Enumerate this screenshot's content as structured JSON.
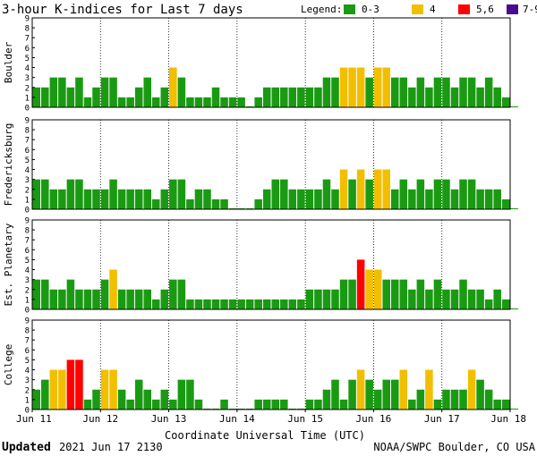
{
  "chart_data": {
    "type": "bar",
    "title": "3-hour K-indices for Last 7 days",
    "legend": {
      "label": "Legend:",
      "placement": "top-right",
      "items": [
        {
          "label": "0-3",
          "color": "#1a9a12"
        },
        {
          "label": "4",
          "color": "#f2bf00"
        },
        {
          "label": "5,6",
          "color": "#ff0000"
        },
        {
          "label": "7-9",
          "color": "#4a0a90"
        }
      ]
    },
    "xlabel": "Coordinate Universal Time (UTC)",
    "x_ticks": [
      "Jun 11",
      "Jun 12",
      "Jun 13",
      "Jun 14",
      "Jun 15",
      "Jun 16",
      "Jun 17",
      "Jun 18"
    ],
    "ylim": [
      0,
      9
    ],
    "y_ticks": [
      0,
      1,
      2,
      3,
      4,
      5,
      6,
      7,
      8,
      9
    ],
    "bars_per_day": 8,
    "panels": [
      {
        "name": "Boulder",
        "values": [
          2,
          2,
          3,
          3,
          2,
          3,
          1,
          2,
          3,
          3,
          1,
          1,
          2,
          3,
          1,
          2,
          4,
          3,
          1,
          1,
          1,
          2,
          1,
          1,
          1,
          0,
          1,
          2,
          2,
          2,
          2,
          2,
          2,
          2,
          3,
          3,
          4,
          4,
          4,
          3,
          4,
          4,
          3,
          3,
          2,
          3,
          2,
          3,
          3,
          2,
          3,
          3,
          2,
          3,
          2,
          1,
          0
        ]
      },
      {
        "name": "Fredericksburg",
        "values": [
          3,
          3,
          2,
          2,
          3,
          3,
          2,
          2,
          2,
          3,
          2,
          2,
          2,
          2,
          1,
          2,
          3,
          3,
          1,
          2,
          2,
          1,
          1,
          0,
          0,
          0,
          1,
          2,
          3,
          3,
          2,
          2,
          2,
          2,
          3,
          2,
          4,
          3,
          4,
          3,
          4,
          4,
          2,
          3,
          2,
          3,
          2,
          3,
          3,
          2,
          3,
          3,
          2,
          2,
          2,
          1,
          0
        ]
      },
      {
        "name": "Est. Planetary",
        "values": [
          3,
          3,
          2,
          2,
          3,
          2,
          2,
          2,
          3,
          4,
          2,
          2,
          2,
          2,
          1,
          2,
          3,
          3,
          1,
          1,
          1,
          1,
          1,
          1,
          1,
          1,
          1,
          1,
          1,
          1,
          1,
          1,
          2,
          2,
          2,
          2,
          3,
          3,
          5,
          4,
          4,
          3,
          3,
          3,
          2,
          3,
          2,
          3,
          2,
          2,
          3,
          2,
          2,
          1,
          2,
          1,
          0
        ]
      },
      {
        "name": "College",
        "values": [
          2,
          3,
          4,
          4,
          5,
          5,
          1,
          2,
          4,
          4,
          2,
          1,
          3,
          2,
          1,
          2,
          1,
          3,
          3,
          1,
          0,
          0,
          1,
          0,
          0,
          0,
          1,
          1,
          1,
          1,
          0,
          0,
          1,
          1,
          2,
          3,
          1,
          3,
          4,
          3,
          2,
          3,
          3,
          4,
          1,
          2,
          4,
          1,
          2,
          2,
          2,
          4,
          3,
          2,
          1,
          1,
          0
        ]
      }
    ]
  },
  "footer": {
    "updated_label": "Updated",
    "updated_value": "2021 Jun 17 2130",
    "credit": "NOAA/SWPC Boulder, CO USA"
  }
}
